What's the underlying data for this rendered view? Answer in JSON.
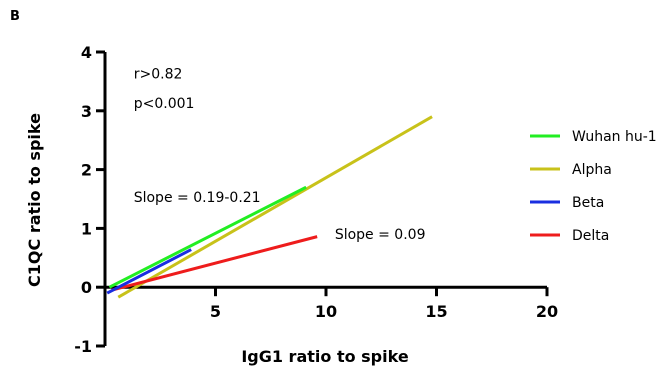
{
  "panel_label": "B",
  "chart_data": {
    "type": "line",
    "title": "",
    "xlabel": "IgG1 ratio to spike",
    "ylabel": "C1QC ratio to spike",
    "xlim": [
      0,
      20
    ],
    "ylim": [
      -1,
      4
    ],
    "x_ticks": [
      5,
      10,
      15,
      20
    ],
    "y_ticks": [
      -1,
      0,
      1,
      2,
      3,
      4
    ],
    "grid": false,
    "legend_position": "right",
    "series": [
      {
        "name": "Wuhan hu-1",
        "color": "#22ee22",
        "points": [
          [
            0.2,
            0.0
          ],
          [
            9.1,
            1.7
          ]
        ]
      },
      {
        "name": "Alpha",
        "color": "#c8c21a",
        "points": [
          [
            0.6,
            -0.17
          ],
          [
            14.8,
            2.9
          ]
        ]
      },
      {
        "name": "Beta",
        "color": "#1a2ee0",
        "points": [
          [
            0.1,
            -0.1
          ],
          [
            3.9,
            0.64
          ]
        ]
      },
      {
        "name": "Delta",
        "color": "#ee1c1c",
        "points": [
          [
            0.3,
            -0.05
          ],
          [
            9.6,
            0.86
          ]
        ]
      }
    ],
    "annotations": [
      {
        "text": "r>0.82",
        "x": 1.3,
        "y": 3.55
      },
      {
        "text": "p<0.001",
        "x": 1.3,
        "y": 3.05
      },
      {
        "text": "Slope = 0.19-0.21",
        "x": 1.3,
        "y": 1.45
      },
      {
        "text": "Slope = 0.09",
        "x": 10.4,
        "y": 0.82
      }
    ]
  }
}
